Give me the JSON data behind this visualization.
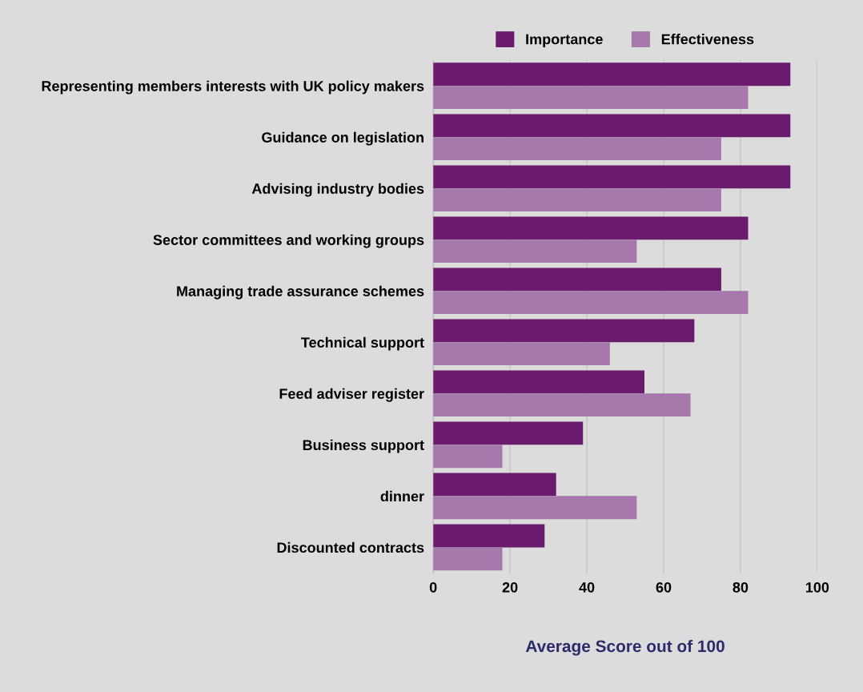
{
  "chart_data": {
    "type": "bar",
    "orientation": "horizontal",
    "xlabel": "Average Score out of 100",
    "categories": [
      "Representing members interests with UK policy makers",
      "Guidance on legislation",
      "Advising industry bodies",
      "Sector committees and working groups",
      "Managing trade assurance schemes",
      "Technical support",
      "Feed adviser register",
      "Business support",
      "dinner",
      "Discounted contracts"
    ],
    "series": [
      {
        "name": "Importance",
        "color": "#6a1b6e",
        "values": [
          93,
          93,
          93,
          82,
          75,
          68,
          55,
          39,
          32,
          29
        ]
      },
      {
        "name": "Effectiveness",
        "color": "#a678ab",
        "values": [
          82,
          75,
          75,
          53,
          82,
          46,
          67,
          18,
          53,
          18
        ]
      }
    ],
    "xlim": [
      0,
      100
    ],
    "xticks": [
      0,
      20,
      40,
      60,
      80,
      100
    ],
    "grid": "x",
    "legend": "top"
  }
}
